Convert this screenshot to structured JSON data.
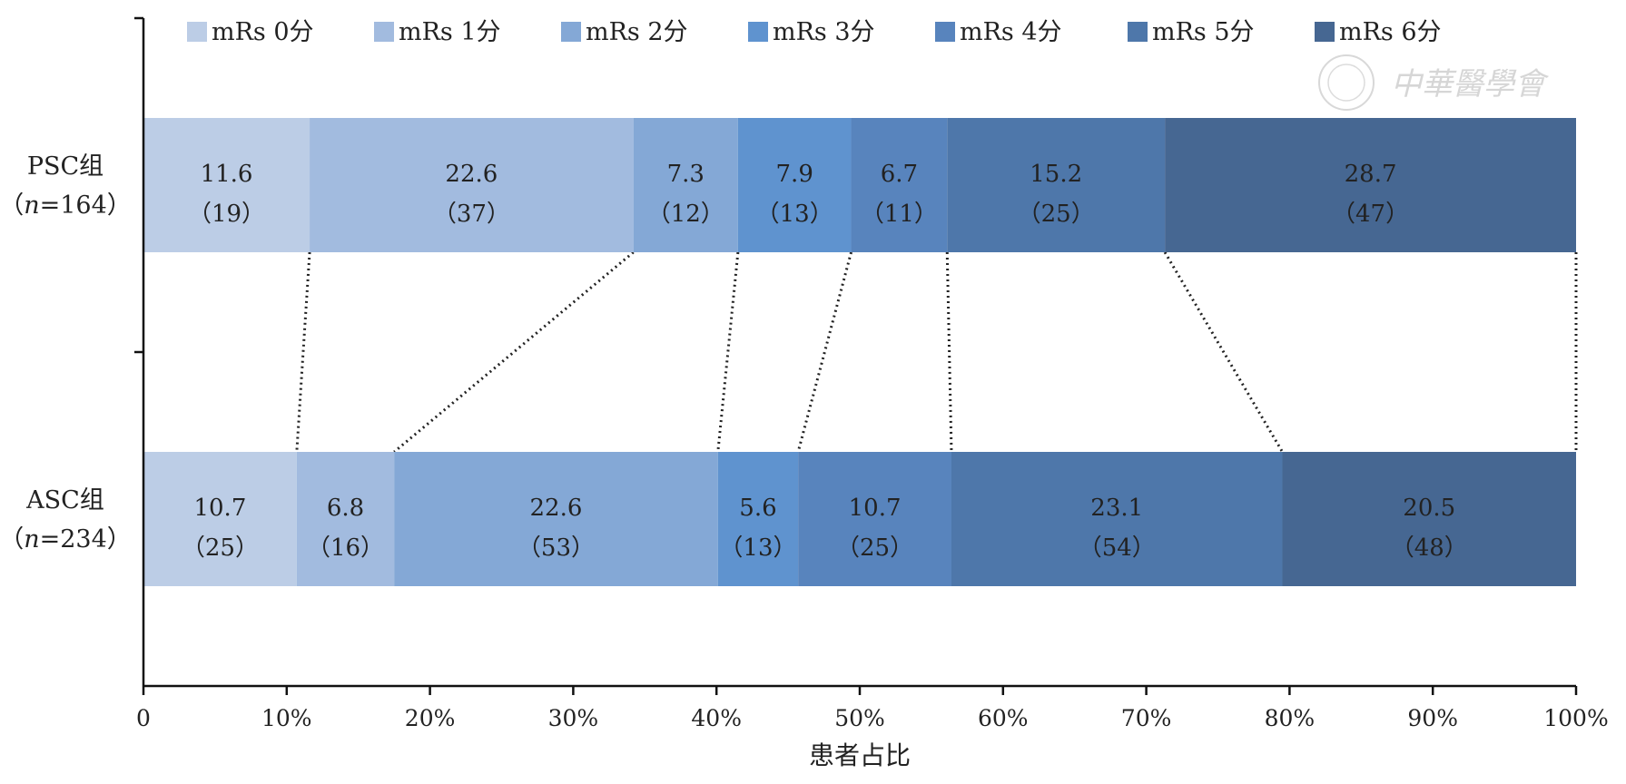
{
  "chart_data": {
    "type": "bar",
    "orientation": "horizontal",
    "stacked": true,
    "xlabel": "患者占比",
    "ylabel": "",
    "xlim": [
      0,
      100
    ],
    "x_ticks": [
      "0",
      "10%",
      "20%",
      "30%",
      "40%",
      "50%",
      "60%",
      "70%",
      "80%",
      "90%",
      "100%"
    ],
    "legend_position": "top",
    "grid": false,
    "categories": [
      {
        "line1": "PSC组",
        "line2_prefix": "（",
        "line2_italic": "n",
        "line2_suffix": "=164）"
      },
      {
        "line1": "ASC组",
        "line2_prefix": "（",
        "line2_italic": "n",
        "line2_suffix": "=234）"
      }
    ],
    "series": [
      {
        "name": "mRs 0分",
        "color": "#bccde6",
        "values": [
          11.6,
          10.7
        ],
        "counts": [
          "（19）",
          "（25）"
        ],
        "value_labels": [
          "11.6",
          "10.7"
        ]
      },
      {
        "name": "mRs 1分",
        "color": "#a2bbdf",
        "values": [
          22.6,
          6.8
        ],
        "counts": [
          "（37）",
          "（16）"
        ],
        "value_labels": [
          "22.6",
          "6.8"
        ]
      },
      {
        "name": "mRs 2分",
        "color": "#84a8d6",
        "values": [
          7.3,
          22.6
        ],
        "counts": [
          "（12）",
          "（53）"
        ],
        "value_labels": [
          "7.3",
          "22.6"
        ]
      },
      {
        "name": "mRs 3分",
        "color": "#5f93cf",
        "values": [
          7.9,
          5.6
        ],
        "counts": [
          "（13）",
          "（13）"
        ],
        "value_labels": [
          "7.9",
          "5.6"
        ]
      },
      {
        "name": "mRs 4分",
        "color": "#5884bd",
        "values": [
          6.7,
          10.7
        ],
        "counts": [
          "（11）",
          "（25）"
        ],
        "value_labels": [
          "6.7",
          "10.7"
        ]
      },
      {
        "name": "mRs 5分",
        "color": "#4e77aa",
        "values": [
          15.2,
          23.1
        ],
        "counts": [
          "（25）",
          "（54）"
        ],
        "value_labels": [
          "15.2",
          "23.1"
        ]
      },
      {
        "name": "mRs 6分",
        "color": "#466792",
        "values": [
          28.7,
          20.5
        ],
        "counts": [
          "（47）",
          "（48）"
        ],
        "value_labels": [
          "28.7",
          "20.5"
        ]
      }
    ],
    "connector_lines": "dotted"
  },
  "watermark": {
    "text": "中華醫學會"
  }
}
